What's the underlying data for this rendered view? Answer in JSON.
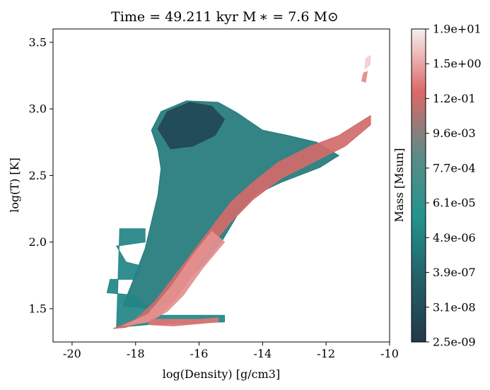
{
  "chart_data": {
    "type": "heatmap",
    "title": "Time = 49.211 kyr    M ∗ = 7.6 M⊙",
    "xlabel": "log(Density) [g/cm3]",
    "ylabel": "log(T) [K]",
    "xlim": [
      -20.6,
      -10.0
    ],
    "ylim": [
      1.25,
      3.6
    ],
    "x_ticks": [
      -20,
      -18,
      -16,
      -14,
      -12,
      -10
    ],
    "y_ticks": [
      1.5,
      2.0,
      2.5,
      3.0,
      3.5
    ],
    "grid": false,
    "colorbar": {
      "label": "Mass [Msun]",
      "ticks": [
        "2.5e-09",
        "3.1e-08",
        "3.9e-07",
        "4.9e-06",
        "6.1e-05",
        "7.7e-04",
        "9.6e-03",
        "1.2e-01",
        "1.5e+00",
        "1.9e+01"
      ],
      "colors": [
        "#22384a",
        "#236067",
        "#22938f",
        "#5d8b87",
        "#dd6767",
        "#f7f0f0"
      ]
    },
    "regions": [
      {
        "name": "hot-diffuse-cloud",
        "level": 0.3,
        "polygon": [
          [
            -17.5,
            2.84
          ],
          [
            -17.2,
            2.98
          ],
          [
            -16.4,
            3.06
          ],
          [
            -15.4,
            3.05
          ],
          [
            -14.8,
            2.97
          ],
          [
            -14.0,
            2.84
          ],
          [
            -13.2,
            2.8
          ],
          [
            -12.3,
            2.75
          ],
          [
            -11.6,
            2.65
          ],
          [
            -12.2,
            2.56
          ],
          [
            -13.4,
            2.45
          ],
          [
            -14.2,
            2.36
          ],
          [
            -14.8,
            2.2
          ],
          [
            -15.3,
            2.0
          ],
          [
            -15.8,
            1.85
          ],
          [
            -16.4,
            1.7
          ],
          [
            -16.9,
            1.55
          ],
          [
            -17.6,
            1.5
          ],
          [
            -18.4,
            1.52
          ],
          [
            -18.1,
            1.7
          ],
          [
            -17.7,
            1.95
          ],
          [
            -17.5,
            2.15
          ],
          [
            -17.3,
            2.35
          ],
          [
            -17.2,
            2.55
          ],
          [
            -17.3,
            2.7
          ]
        ]
      },
      {
        "name": "cold-core",
        "level": 0.08,
        "polygon": [
          [
            -17.3,
            2.85
          ],
          [
            -17.0,
            2.98
          ],
          [
            -16.3,
            3.05
          ],
          [
            -15.6,
            3.02
          ],
          [
            -15.2,
            2.92
          ],
          [
            -15.5,
            2.8
          ],
          [
            -16.2,
            2.72
          ],
          [
            -16.9,
            2.7
          ]
        ]
      },
      {
        "name": "low-temperature-tail",
        "level": 0.35,
        "polygon": [
          [
            -18.5,
            2.1
          ],
          [
            -17.7,
            2.1
          ],
          [
            -17.7,
            2.0
          ],
          [
            -18.6,
            1.97
          ],
          [
            -18.3,
            1.85
          ],
          [
            -17.8,
            1.82
          ],
          [
            -18.0,
            1.72
          ],
          [
            -18.8,
            1.72
          ],
          [
            -18.9,
            1.62
          ],
          [
            -18.0,
            1.6
          ],
          [
            -17.4,
            1.45
          ],
          [
            -15.2,
            1.45
          ],
          [
            -15.2,
            1.4
          ],
          [
            -17.6,
            1.38
          ],
          [
            -18.6,
            1.36
          ]
        ]
      },
      {
        "name": "dense-gas-ridge",
        "level": 0.78,
        "polygon": [
          [
            -18.7,
            1.35
          ],
          [
            -18.0,
            1.42
          ],
          [
            -17.4,
            1.55
          ],
          [
            -16.6,
            1.8
          ],
          [
            -15.8,
            2.05
          ],
          [
            -15.0,
            2.3
          ],
          [
            -14.3,
            2.45
          ],
          [
            -13.5,
            2.6
          ],
          [
            -12.5,
            2.72
          ],
          [
            -11.6,
            2.8
          ],
          [
            -10.6,
            2.95
          ],
          [
            -10.6,
            2.88
          ],
          [
            -11.4,
            2.72
          ],
          [
            -12.4,
            2.6
          ],
          [
            -13.4,
            2.48
          ],
          [
            -14.3,
            2.32
          ],
          [
            -15.0,
            2.15
          ],
          [
            -15.7,
            1.95
          ],
          [
            -16.3,
            1.72
          ],
          [
            -16.8,
            1.55
          ],
          [
            -17.3,
            1.44
          ],
          [
            -17.6,
            1.42
          ],
          [
            -17.8,
            1.4
          ],
          [
            -18.3,
            1.36
          ]
        ]
      },
      {
        "name": "dense-gas-ridge-inner",
        "level": 0.86,
        "polygon": [
          [
            -18.4,
            1.37
          ],
          [
            -17.6,
            1.46
          ],
          [
            -16.9,
            1.66
          ],
          [
            -16.2,
            1.9
          ],
          [
            -15.6,
            2.08
          ],
          [
            -15.2,
            2.0
          ],
          [
            -15.9,
            1.8
          ],
          [
            -16.5,
            1.6
          ],
          [
            -17.0,
            1.48
          ],
          [
            -17.6,
            1.4
          ]
        ]
      },
      {
        "name": "low-temperature-branch",
        "level": 0.82,
        "polygon": [
          [
            -17.5,
            1.42
          ],
          [
            -16.0,
            1.42
          ],
          [
            -15.4,
            1.43
          ],
          [
            -15.4,
            1.4
          ],
          [
            -16.8,
            1.37
          ],
          [
            -17.6,
            1.38
          ]
        ]
      },
      {
        "name": "hot-dense-clump",
        "level": 0.95,
        "polygon": [
          [
            -10.75,
            3.38
          ],
          [
            -10.6,
            3.4
          ],
          [
            -10.62,
            3.33
          ],
          [
            -10.78,
            3.3
          ]
        ]
      },
      {
        "name": "hot-dense-wisp",
        "level": 0.85,
        "polygon": [
          [
            -10.82,
            3.27
          ],
          [
            -10.7,
            3.28
          ],
          [
            -10.76,
            3.2
          ],
          [
            -10.88,
            3.21
          ]
        ]
      }
    ]
  }
}
